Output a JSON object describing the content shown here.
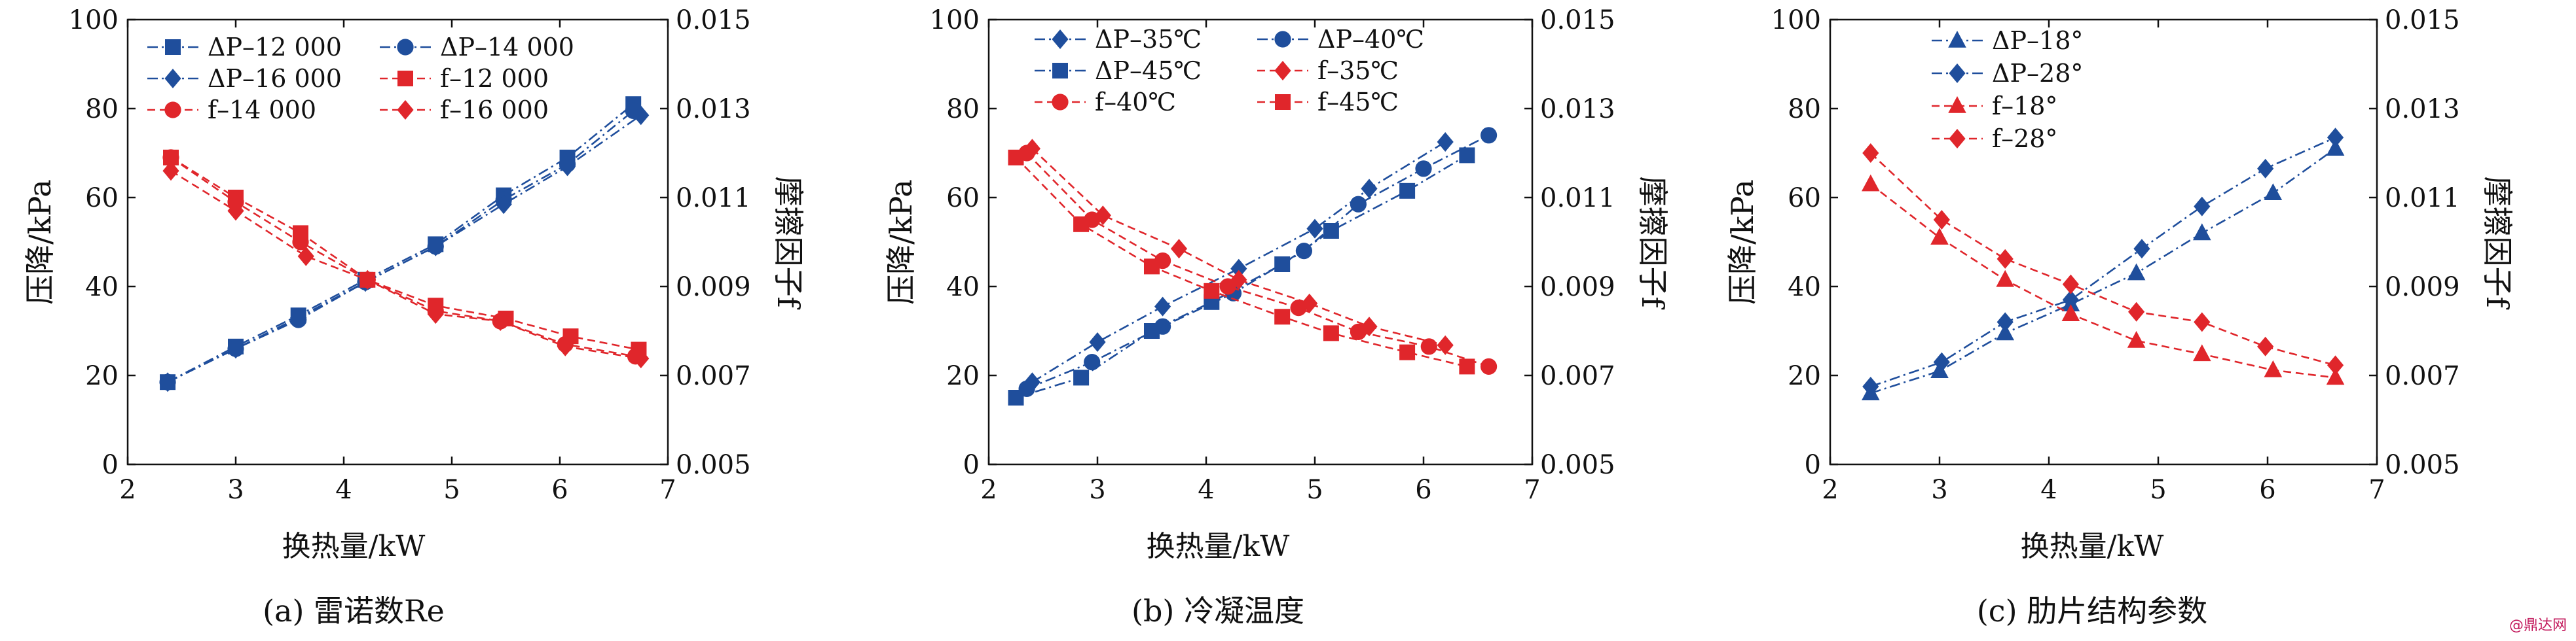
{
  "chart_data": [
    {
      "type": "line",
      "caption": "(a) 雷诺数Re",
      "xlabel": "换热量/kW",
      "ylabel": "压降/kPa",
      "y2label": "摩擦因子f",
      "xlim": [
        2,
        7
      ],
      "ylim": [
        0,
        100
      ],
      "y2lim": [
        0.005,
        0.015
      ],
      "xticks": [
        "2",
        "3",
        "4",
        "5",
        "6",
        "7"
      ],
      "yticks": [
        "0",
        "20",
        "40",
        "60",
        "80",
        "100"
      ],
      "y2ticks": [
        "0.005",
        "0.007",
        "0.009",
        "0.011",
        "0.013",
        "0.015"
      ],
      "legend": "top-left",
      "legend_columns": 2,
      "series": [
        {
          "name": "ΔP–12 000",
          "axis": "left",
          "color": "#1f4e9c",
          "marker": "square",
          "x": [
            2.37,
            3.0,
            3.58,
            4.2,
            4.85,
            5.48,
            6.07,
            6.68
          ],
          "values": [
            18.5,
            26.5,
            33.5,
            41.5,
            49.5,
            60.5,
            69.0,
            81.0
          ]
        },
        {
          "name": "ΔP–14 000",
          "axis": "left",
          "color": "#1f4e9c",
          "marker": "circle",
          "x": [
            2.37,
            3.0,
            3.58,
            4.2,
            4.85,
            5.48,
            6.07,
            6.68
          ],
          "values": [
            18.5,
            26.0,
            32.5,
            41.0,
            49.0,
            59.5,
            67.5,
            79.5
          ]
        },
        {
          "name": "ΔP–16 000",
          "axis": "left",
          "color": "#1f4e9c",
          "marker": "diamond",
          "x": [
            2.37,
            3.0,
            3.58,
            4.2,
            4.85,
            5.48,
            6.07,
            6.75
          ],
          "values": [
            18.5,
            26.0,
            33.0,
            41.0,
            49.0,
            58.5,
            67.0,
            78.5
          ]
        },
        {
          "name": "f–12 000",
          "axis": "right",
          "color": "#e0262b",
          "marker": "square",
          "x": [
            2.4,
            3.0,
            3.6,
            4.22,
            4.85,
            5.5,
            6.1,
            6.73
          ],
          "values": [
            0.0119,
            0.011,
            0.0102,
            0.00915,
            0.00857,
            0.00828,
            0.00788,
            0.00758
          ]
        },
        {
          "name": "f–14 000",
          "axis": "right",
          "color": "#e0262b",
          "marker": "circle",
          "x": [
            2.4,
            3.0,
            3.6,
            4.22,
            4.85,
            5.45,
            6.05,
            6.7
          ],
          "values": [
            0.0119,
            0.0109,
            0.01,
            0.00915,
            0.00845,
            0.00822,
            0.0077,
            0.00743
          ]
        },
        {
          "name": "f–16 000",
          "axis": "right",
          "color": "#e0262b",
          "marker": "diamond",
          "x": [
            2.4,
            3.0,
            3.65,
            4.22,
            4.85,
            5.45,
            6.05,
            6.75
          ],
          "values": [
            0.0116,
            0.0107,
            0.00968,
            0.00915,
            0.00838,
            0.00822,
            0.00765,
            0.00738
          ]
        }
      ]
    },
    {
      "type": "line",
      "caption": "(b) 冷凝温度",
      "xlabel": "换热量/kW",
      "ylabel": "压降/kPa",
      "y2label": "摩擦因子f",
      "xlim": [
        2,
        7
      ],
      "ylim": [
        0,
        100
      ],
      "y2lim": [
        0.005,
        0.015
      ],
      "xticks": [
        "2",
        "3",
        "4",
        "5",
        "6",
        "7"
      ],
      "yticks": [
        "0",
        "20",
        "40",
        "60",
        "80",
        "100"
      ],
      "y2ticks": [
        "0.005",
        "0.007",
        "0.009",
        "0.011",
        "0.013",
        "0.015"
      ],
      "legend": "top",
      "legend_columns": 2,
      "series": [
        {
          "name": "ΔP–35℃",
          "axis": "left",
          "color": "#1f4e9c",
          "marker": "diamond",
          "x": [
            2.4,
            3.0,
            3.6,
            4.3,
            5.0,
            5.5,
            6.2
          ],
          "values": [
            18.5,
            27.5,
            35.5,
            44.0,
            53.0,
            62.0,
            72.5
          ]
        },
        {
          "name": "ΔP–40℃",
          "axis": "left",
          "color": "#1f4e9c",
          "marker": "circle",
          "x": [
            2.35,
            2.95,
            3.6,
            4.25,
            4.9,
            5.4,
            6.0,
            6.6
          ],
          "values": [
            17.0,
            23.0,
            31.0,
            38.5,
            48.0,
            58.5,
            66.5,
            74.0
          ]
        },
        {
          "name": "ΔP–45℃",
          "axis": "left",
          "color": "#1f4e9c",
          "marker": "square",
          "x": [
            2.25,
            2.85,
            3.5,
            4.05,
            4.7,
            5.15,
            5.85,
            6.4
          ],
          "values": [
            15.0,
            19.5,
            30.0,
            36.5,
            45.0,
            52.5,
            61.5,
            69.5
          ]
        },
        {
          "name": "f–35℃",
          "axis": "right",
          "color": "#e0262b",
          "marker": "diamond",
          "x": [
            2.4,
            3.05,
            3.75,
            4.3,
            4.95,
            5.5,
            6.2
          ],
          "values": [
            0.0121,
            0.0106,
            0.00985,
            0.00915,
            0.00862,
            0.0081,
            0.00768
          ]
        },
        {
          "name": "f–40℃",
          "axis": "right",
          "color": "#e0262b",
          "marker": "circle",
          "x": [
            2.35,
            2.95,
            3.6,
            4.2,
            4.85,
            5.4,
            6.05,
            6.6
          ],
          "values": [
            0.012,
            0.0105,
            0.00958,
            0.009,
            0.00852,
            0.00798,
            0.00765,
            0.0072
          ]
        },
        {
          "name": "f–45℃",
          "axis": "right",
          "color": "#e0262b",
          "marker": "square",
          "x": [
            2.25,
            2.85,
            3.5,
            4.05,
            4.7,
            5.15,
            5.85,
            6.4
          ],
          "values": [
            0.0119,
            0.0104,
            0.00945,
            0.0089,
            0.00832,
            0.00795,
            0.00752,
            0.0072
          ]
        }
      ]
    },
    {
      "type": "line",
      "caption": "(c) 肋片结构参数",
      "xlabel": "换热量/kW",
      "ylabel": "压降/kPa",
      "y2label": "摩擦因子f",
      "xlim": [
        2,
        7
      ],
      "ylim": [
        0,
        100
      ],
      "y2lim": [
        0.005,
        0.015
      ],
      "xticks": [
        "2",
        "3",
        "4",
        "5",
        "6",
        "7"
      ],
      "yticks": [
        "0",
        "20",
        "40",
        "60",
        "80",
        "100"
      ],
      "y2ticks": [
        "0.005",
        "0.007",
        "0.009",
        "0.011",
        "0.013",
        "0.015"
      ],
      "legend": "top-left",
      "legend_columns": 1,
      "series": [
        {
          "name": "ΔP–18°",
          "axis": "left",
          "color": "#1f4e9c",
          "marker": "triangle",
          "x": [
            2.37,
            3.0,
            3.6,
            4.2,
            4.8,
            5.4,
            6.05,
            6.62
          ],
          "values": [
            16.0,
            21.0,
            29.5,
            36.0,
            43.0,
            52.0,
            61.0,
            71.0
          ]
        },
        {
          "name": "ΔP–28°",
          "axis": "left",
          "color": "#1f4e9c",
          "marker": "diamond",
          "x": [
            2.37,
            3.02,
            3.6,
            4.2,
            4.85,
            5.4,
            5.98,
            6.62
          ],
          "values": [
            17.5,
            23.0,
            32.0,
            37.0,
            48.5,
            58.0,
            66.5,
            73.5
          ]
        },
        {
          "name": "f–18°",
          "axis": "right",
          "color": "#e0262b",
          "marker": "triangle",
          "x": [
            2.37,
            3.0,
            3.6,
            4.2,
            4.8,
            5.4,
            6.05,
            6.62
          ],
          "values": [
            0.0113,
            0.0101,
            0.00915,
            0.00838,
            0.00778,
            0.00748,
            0.00712,
            0.00695
          ]
        },
        {
          "name": "f–28°",
          "axis": "right",
          "color": "#e0262b",
          "marker": "diamond",
          "x": [
            2.37,
            3.02,
            3.6,
            4.2,
            4.8,
            5.4,
            5.98,
            6.62
          ],
          "values": [
            0.012,
            0.0105,
            0.00962,
            0.00905,
            0.00843,
            0.0082,
            0.00765,
            0.00723
          ]
        }
      ]
    }
  ],
  "watermark": "@鼎达网"
}
